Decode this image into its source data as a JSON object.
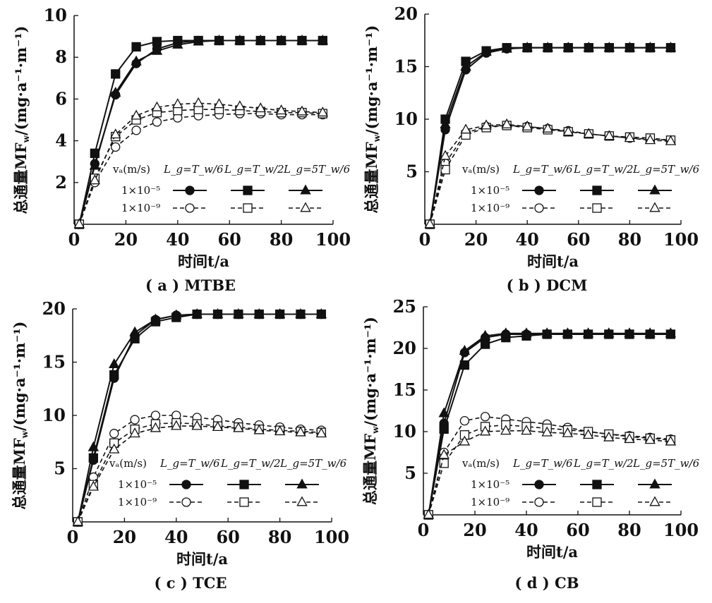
{
  "chart_data": [
    {
      "type": "line",
      "caption": "( a ) MTBE",
      "xlabel": "时间t/a",
      "ylabel": "总通量MF_w/(mg·a⁻¹·m⁻¹)",
      "xlim": [
        0,
        100
      ],
      "ylim": [
        0,
        10
      ],
      "xticks": [
        "0",
        "20",
        "40",
        "60",
        "80",
        "100"
      ],
      "yticks": [
        "2",
        "4",
        "6",
        "8",
        "10"
      ],
      "ytick_values": [
        2,
        4,
        6,
        8,
        10
      ],
      "x": [
        2,
        8,
        16,
        24,
        32,
        40,
        48,
        56,
        64,
        72,
        80,
        88,
        96
      ],
      "series": [
        {
          "name": "1×10⁻⁵ L_g=T_w/6",
          "marker": "circle",
          "filled": true,
          "dashed": false,
          "values": [
            0,
            2.9,
            6.2,
            7.7,
            8.4,
            8.7,
            8.8,
            8.8,
            8.8,
            8.8,
            8.8,
            8.8,
            8.8
          ]
        },
        {
          "name": "1×10⁻⁵ L_g=T_w/2",
          "marker": "square",
          "filled": true,
          "dashed": false,
          "values": [
            0,
            3.4,
            7.2,
            8.5,
            8.75,
            8.8,
            8.8,
            8.8,
            8.8,
            8.8,
            8.8,
            8.8,
            8.8
          ]
        },
        {
          "name": "1×10⁻⁵ L_g=5T_w/6",
          "marker": "triangle",
          "filled": true,
          "dashed": false,
          "values": [
            0,
            2.8,
            6.3,
            7.8,
            8.3,
            8.6,
            8.75,
            8.8,
            8.8,
            8.8,
            8.8,
            8.8,
            8.8
          ]
        },
        {
          "name": "1×10⁻⁹ L_g=T_w/6",
          "marker": "circle",
          "filled": false,
          "dashed": true,
          "values": [
            0,
            2.0,
            3.7,
            4.5,
            4.9,
            5.1,
            5.2,
            5.25,
            5.3,
            5.3,
            5.25,
            5.25,
            5.25
          ]
        },
        {
          "name": "1×10⁻⁹ L_g=T_w/2",
          "marker": "square",
          "filled": false,
          "dashed": true,
          "values": [
            0,
            2.2,
            4.2,
            5.0,
            5.35,
            5.45,
            5.5,
            5.5,
            5.45,
            5.4,
            5.35,
            5.35,
            5.3
          ]
        },
        {
          "name": "1×10⁻⁹ L_g=5T_w/6",
          "marker": "triangle",
          "filled": false,
          "dashed": true,
          "values": [
            0,
            2.1,
            4.3,
            5.2,
            5.6,
            5.75,
            5.8,
            5.75,
            5.65,
            5.55,
            5.45,
            5.4,
            5.35
          ]
        }
      ]
    },
    {
      "type": "line",
      "caption": "( b ) DCM",
      "xlabel": "时间t/a",
      "ylabel": "总通量MF_w/(mg·a⁻¹·m⁻¹)",
      "xlim": [
        0,
        100
      ],
      "ylim": [
        0,
        20
      ],
      "xticks": [
        "0",
        "20",
        "40",
        "60",
        "80",
        "100"
      ],
      "yticks": [
        "5",
        "10",
        "15",
        "20"
      ],
      "ytick_values": [
        5,
        10,
        15,
        20
      ],
      "x": [
        2,
        8,
        16,
        24,
        32,
        40,
        48,
        56,
        64,
        72,
        80,
        88,
        96
      ],
      "series": [
        {
          "name": "1×10⁻⁵ L_g=T_w/6",
          "marker": "circle",
          "filled": true,
          "dashed": false,
          "values": [
            0,
            9,
            14.7,
            16.3,
            16.7,
            16.8,
            16.8,
            16.8,
            16.8,
            16.8,
            16.8,
            16.8,
            16.8
          ]
        },
        {
          "name": "1×10⁻⁵ L_g=T_w/2",
          "marker": "square",
          "filled": true,
          "dashed": false,
          "values": [
            0,
            10,
            15.5,
            16.5,
            16.8,
            16.8,
            16.8,
            16.8,
            16.8,
            16.8,
            16.8,
            16.8,
            16.8
          ]
        },
        {
          "name": "1×10⁻⁵ L_g=5T_w/6",
          "marker": "triangle",
          "filled": true,
          "dashed": false,
          "values": [
            0,
            9.5,
            15,
            16.4,
            16.7,
            16.8,
            16.8,
            16.8,
            16.8,
            16.8,
            16.8,
            16.8,
            16.8
          ]
        },
        {
          "name": "1×10⁻⁹ L_g=T_w/6",
          "marker": "circle",
          "filled": false,
          "dashed": true,
          "values": [
            0,
            5.8,
            8.7,
            9.3,
            9.4,
            9.3,
            9.1,
            8.9,
            8.6,
            8.4,
            8.2,
            8.1,
            8.0
          ]
        },
        {
          "name": "1×10⁻⁹ L_g=T_w/2",
          "marker": "square",
          "filled": false,
          "dashed": true,
          "values": [
            0,
            5.2,
            8.5,
            9.2,
            9.4,
            9.2,
            9.0,
            8.8,
            8.6,
            8.4,
            8.3,
            8.2,
            8.0
          ]
        },
        {
          "name": "1×10⁻⁹ L_g=5T_w/6",
          "marker": "triangle",
          "filled": false,
          "dashed": true,
          "values": [
            0,
            6.5,
            9.0,
            9.4,
            9.5,
            9.3,
            9.1,
            8.8,
            8.6,
            8.4,
            8.2,
            8.0,
            7.9
          ]
        }
      ]
    },
    {
      "type": "line",
      "caption": "( c ) TCE",
      "xlabel": "时间t/a",
      "ylabel": "总通量MF_w/(mg·a⁻¹·m⁻¹)",
      "xlim": [
        0,
        100
      ],
      "ylim": [
        0,
        20
      ],
      "xticks": [
        "0",
        "20",
        "40",
        "60",
        "80",
        "100"
      ],
      "yticks": [
        "5",
        "10",
        "15",
        "20"
      ],
      "ytick_values": [
        5,
        10,
        15,
        20
      ],
      "x": [
        2,
        8,
        16,
        24,
        32,
        40,
        48,
        56,
        64,
        72,
        80,
        88,
        96
      ],
      "series": [
        {
          "name": "1×10⁻⁵ L_g=T_w/6",
          "marker": "circle",
          "filled": true,
          "dashed": false,
          "values": [
            0,
            5.8,
            13.5,
            17.5,
            19,
            19.4,
            19.5,
            19.5,
            19.5,
            19.5,
            19.5,
            19.5,
            19.5
          ]
        },
        {
          "name": "1×10⁻⁵ L_g=T_w/2",
          "marker": "square",
          "filled": true,
          "dashed": false,
          "values": [
            0,
            6,
            13.8,
            17.2,
            18.8,
            19.2,
            19.5,
            19.5,
            19.5,
            19.5,
            19.5,
            19.5,
            19.5
          ]
        },
        {
          "name": "1×10⁻⁵ L_g=5T_w/6",
          "marker": "triangle",
          "filled": true,
          "dashed": false,
          "values": [
            0,
            7,
            14.8,
            17.8,
            19.0,
            19.4,
            19.5,
            19.5,
            19.5,
            19.5,
            19.5,
            19.5,
            19.5
          ]
        },
        {
          "name": "1×10⁻⁹ L_g=T_w/6",
          "marker": "circle",
          "filled": false,
          "dashed": true,
          "values": [
            0,
            4.2,
            8.3,
            9.6,
            10,
            10,
            9.8,
            9.6,
            9.3,
            9.1,
            8.9,
            8.7,
            8.6
          ]
        },
        {
          "name": "1×10⁻⁹ L_g=T_w/2",
          "marker": "square",
          "filled": false,
          "dashed": true,
          "values": [
            0,
            3.5,
            7.4,
            8.7,
            9.2,
            9.3,
            9.2,
            9.0,
            8.9,
            8.7,
            8.6,
            8.5,
            8.4
          ]
        },
        {
          "name": "1×10⁻⁹ L_g=5T_w/6",
          "marker": "triangle",
          "filled": false,
          "dashed": true,
          "values": [
            0,
            3.3,
            6.8,
            8.3,
            8.8,
            9,
            9,
            8.9,
            8.8,
            8.6,
            8.5,
            8.4,
            8.3
          ]
        }
      ]
    },
    {
      "type": "line",
      "caption": "( d ) CB",
      "xlabel": "时间t/a",
      "ylabel": "总通量MF_w/(mg·a⁻¹·m⁻¹)",
      "xlim": [
        0,
        100
      ],
      "ylim": [
        0,
        25
      ],
      "xticks": [
        "0",
        "20",
        "40",
        "60",
        "80",
        "100"
      ],
      "yticks": [
        "5",
        "10",
        "15",
        "20",
        "25"
      ],
      "ytick_values": [
        5,
        10,
        15,
        20,
        25
      ],
      "x": [
        2,
        8,
        16,
        24,
        32,
        40,
        48,
        56,
        64,
        72,
        80,
        88,
        96
      ],
      "series": [
        {
          "name": "1×10⁻⁵ L_g=T_w/6",
          "marker": "circle",
          "filled": true,
          "dashed": false,
          "values": [
            0,
            11,
            19.5,
            21.3,
            21.7,
            21.7,
            21.7,
            21.7,
            21.7,
            21.7,
            21.7,
            21.7,
            21.7
          ]
        },
        {
          "name": "1×10⁻⁵ L_g=T_w/2",
          "marker": "square",
          "filled": true,
          "dashed": false,
          "values": [
            0,
            10.3,
            18,
            20.5,
            21.3,
            21.5,
            21.7,
            21.7,
            21.7,
            21.7,
            21.7,
            21.7,
            21.7
          ]
        },
        {
          "name": "1×10⁻⁵ L_g=5T_w/6",
          "marker": "triangle",
          "filled": true,
          "dashed": false,
          "values": [
            0,
            12.2,
            19.7,
            21.5,
            21.8,
            21.8,
            21.8,
            21.8,
            21.8,
            21.8,
            21.8,
            21.8,
            21.8
          ]
        },
        {
          "name": "1×10⁻⁹ L_g=T_w/6",
          "marker": "circle",
          "filled": false,
          "dashed": true,
          "values": [
            0,
            7.5,
            11.3,
            11.8,
            11.5,
            11.2,
            10.9,
            10.5,
            10,
            9.7,
            9.5,
            9.3,
            9.1
          ]
        },
        {
          "name": "1×10⁻⁹ L_g=T_w/2",
          "marker": "square",
          "filled": false,
          "dashed": true,
          "values": [
            0,
            6.2,
            9.6,
            10.6,
            10.8,
            10.6,
            10.4,
            10.2,
            10,
            9.7,
            9.4,
            9.2,
            9.0
          ]
        },
        {
          "name": "1×10⁻⁹ L_g=5T_w/6",
          "marker": "triangle",
          "filled": false,
          "dashed": true,
          "values": [
            0,
            7.2,
            8.8,
            10,
            10.1,
            10.1,
            9.9,
            9.8,
            9.6,
            9.3,
            9.1,
            9.0,
            8.8
          ]
        }
      ]
    }
  ],
  "legend": {
    "header": [
      "vₐ(m/s)",
      "L_g=T_w/6",
      "L_g=T_w/2",
      "L_g=5T_w/6"
    ],
    "rows": [
      "1×10⁻⁵",
      "1×10⁻⁹"
    ],
    "placement": "center-right"
  }
}
